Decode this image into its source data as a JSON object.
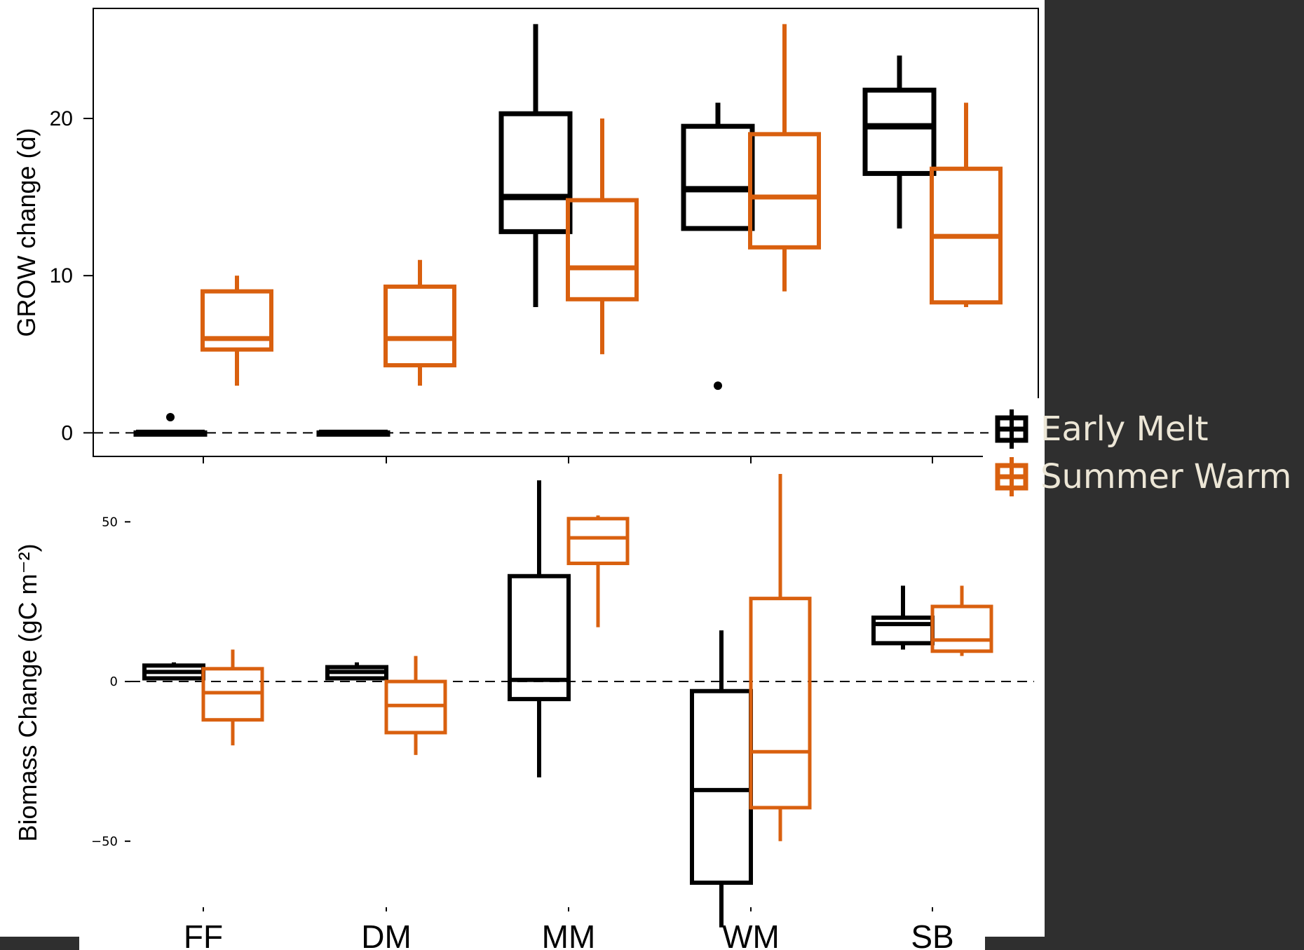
{
  "colors": {
    "early_melt": "#000000",
    "summer_warm": "#d9600f",
    "panel_background": "#2f2f2f",
    "legend_text": "#ece6d6"
  },
  "legend": {
    "placement": "right",
    "items": [
      {
        "label": "Early Melt",
        "color_key": "early_melt"
      },
      {
        "label": "Summer Warm",
        "color_key": "summer_warm"
      }
    ]
  },
  "chart_data": [
    {
      "type": "box",
      "ylabel": "GROW change (d)",
      "ylim": [
        -1.5,
        27
      ],
      "yticks": [
        0,
        10,
        20
      ],
      "reference_line": 0,
      "categories": [
        "FF",
        "DM",
        "MM",
        "WM",
        "SB"
      ],
      "series": [
        {
          "name": "Early Melt",
          "color_key": "early_melt",
          "boxes": [
            {
              "category": "FF",
              "min": 0,
              "q1": 0,
              "median": 0,
              "q3": 0,
              "max": 0,
              "outliers": [
                1
              ]
            },
            {
              "category": "DM",
              "min": 0,
              "q1": 0,
              "median": 0,
              "q3": 0,
              "max": 0,
              "outliers": []
            },
            {
              "category": "MM",
              "min": 8,
              "q1": 12.8,
              "median": 15,
              "q3": 20.3,
              "max": 26,
              "outliers": []
            },
            {
              "category": "WM",
              "min": 13,
              "q1": 13,
              "median": 15.5,
              "q3": 19.5,
              "max": 21,
              "outliers": [
                3
              ]
            },
            {
              "category": "SB",
              "min": 13,
              "q1": 16.5,
              "median": 19.5,
              "q3": 21.8,
              "max": 24,
              "outliers": []
            }
          ]
        },
        {
          "name": "Summer Warm",
          "color_key": "summer_warm",
          "boxes": [
            {
              "category": "FF",
              "min": 3,
              "q1": 5.3,
              "median": 6,
              "q3": 9,
              "max": 10,
              "outliers": []
            },
            {
              "category": "DM",
              "min": 3,
              "q1": 4.3,
              "median": 6,
              "q3": 9.3,
              "max": 11,
              "outliers": []
            },
            {
              "category": "MM",
              "min": 5,
              "q1": 8.5,
              "median": 10.5,
              "q3": 14.8,
              "max": 20,
              "outliers": []
            },
            {
              "category": "WM",
              "min": 9,
              "q1": 11.8,
              "median": 15,
              "q3": 19,
              "max": 26,
              "outliers": []
            },
            {
              "category": "SB",
              "min": 8,
              "q1": 8.3,
              "median": 12.5,
              "q3": 16.8,
              "max": 21,
              "outliers": []
            }
          ]
        }
      ]
    },
    {
      "type": "box",
      "ylabel": "Biomass Change (gC m⁻²)",
      "ylim": [
        -72,
        65
      ],
      "yticks": [
        -50,
        0,
        50
      ],
      "ytick_labels": [
        "−50",
        "0",
        "50"
      ],
      "reference_line": 0,
      "categories": [
        "FF",
        "DM",
        "MM",
        "WM",
        "SB"
      ],
      "series": [
        {
          "name": "Early Melt",
          "color_key": "early_melt",
          "boxes": [
            {
              "category": "FF",
              "min": 1,
              "q1": 1,
              "median": 3,
              "q3": 5,
              "max": 6,
              "outliers": []
            },
            {
              "category": "DM",
              "min": 1,
              "q1": 1,
              "median": 3,
              "q3": 4.5,
              "max": 6,
              "outliers": []
            },
            {
              "category": "MM",
              "min": -30,
              "q1": -5.5,
              "median": 0.5,
              "q3": 33,
              "max": 63,
              "outliers": []
            },
            {
              "category": "WM",
              "min": -77,
              "q1": -63,
              "median": -34,
              "q3": -3,
              "max": 16,
              "outliers": []
            },
            {
              "category": "SB",
              "min": 10,
              "q1": 12,
              "median": 18,
              "q3": 20,
              "max": 30,
              "outliers": []
            }
          ]
        },
        {
          "name": "Summer Warm",
          "color_key": "summer_warm",
          "boxes": [
            {
              "category": "FF",
              "min": -20,
              "q1": -12,
              "median": -3.5,
              "q3": 4,
              "max": 10,
              "outliers": []
            },
            {
              "category": "DM",
              "min": -23,
              "q1": -16,
              "median": -7.5,
              "q3": 0,
              "max": 8,
              "outliers": []
            },
            {
              "category": "MM",
              "min": 17,
              "q1": 37,
              "median": 45,
              "q3": 51,
              "max": 52,
              "outliers": []
            },
            {
              "category": "WM",
              "min": -50,
              "q1": -39.5,
              "median": -22,
              "q3": 26,
              "max": 65,
              "outliers": []
            },
            {
              "category": "SB",
              "min": 8,
              "q1": 9.5,
              "median": 13,
              "q3": 23.5,
              "max": 30,
              "outliers": []
            }
          ]
        }
      ]
    }
  ]
}
